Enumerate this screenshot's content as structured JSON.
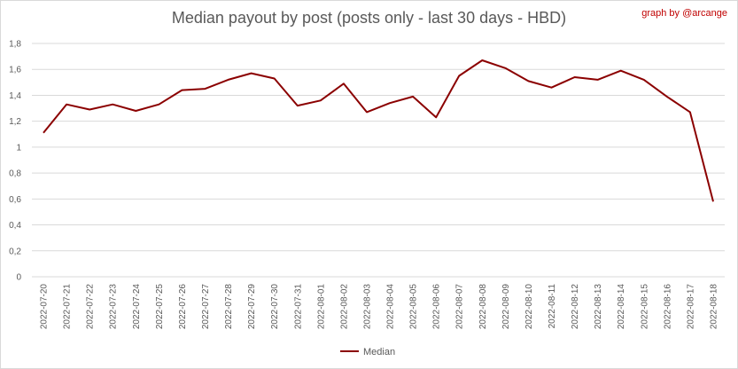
{
  "header": {
    "credit": "graph by @arcange"
  },
  "chart_data": {
    "type": "line",
    "title": "Median payout by post (posts only - last 30 days - HBD)",
    "xlabel": "",
    "ylabel": "",
    "ylim": [
      0,
      1.8
    ],
    "yticks": [
      "0",
      "0,2",
      "0,4",
      "0,6",
      "0,8",
      "1",
      "1,2",
      "1,4",
      "1,6",
      "1,8"
    ],
    "grid": true,
    "legend_position": "bottom",
    "categories": [
      "2022-07-20",
      "2022-07-21",
      "2022-07-22",
      "2022-07-23",
      "2022-07-24",
      "2022-07-25",
      "2022-07-26",
      "2022-07-27",
      "2022-07-28",
      "2022-07-29",
      "2022-07-30",
      "2022-07-31",
      "2022-08-01",
      "2022-08-02",
      "2022-08-03",
      "2022-08-04",
      "2022-08-05",
      "2022-08-06",
      "2022-08-07",
      "2022-08-08",
      "2022-08-09",
      "2022-08-10",
      "2022-08-11",
      "2022-08-12",
      "2022-08-13",
      "2022-08-14",
      "2022-08-15",
      "2022-08-16",
      "2022-08-17",
      "2022-08-18"
    ],
    "series": [
      {
        "name": "Median",
        "color": "#8b0000",
        "values": [
          1.11,
          1.33,
          1.29,
          1.33,
          1.28,
          1.33,
          1.44,
          1.45,
          1.52,
          1.57,
          1.53,
          1.32,
          1.36,
          1.49,
          1.27,
          1.34,
          1.39,
          1.23,
          1.55,
          1.67,
          1.61,
          1.51,
          1.46,
          1.54,
          1.52,
          1.59,
          1.52,
          1.39,
          1.27,
          0.58
        ]
      }
    ]
  }
}
